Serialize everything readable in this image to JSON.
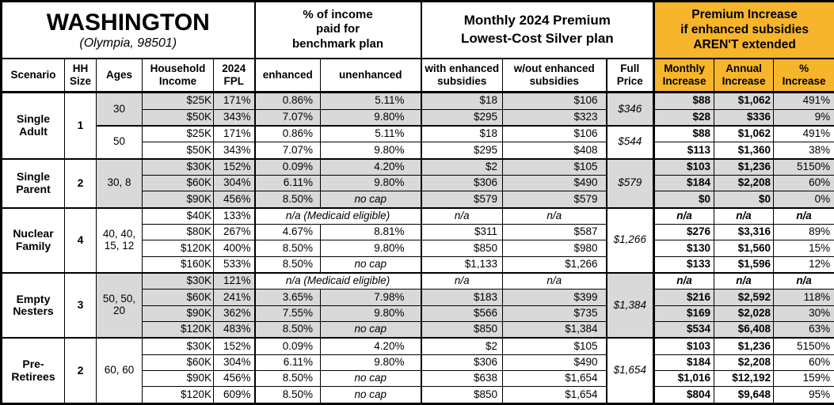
{
  "title": {
    "state": "WASHINGTON",
    "location": "(Olympia, 98501)"
  },
  "section_headers": {
    "benchmark": "% of income\npaid for\nbenchmark plan",
    "premium": "Monthly 2024 Premium\nLowest-Cost Silver plan",
    "increase": "Premium Increase\nif enhanced subsidies\nAREN'T extended"
  },
  "columns": {
    "scenario": "Scenario",
    "hh_size": "HH\nSize",
    "ages": "Ages",
    "household_income": "Household\nIncome",
    "fpl_2024": "2024\nFPL",
    "enhanced": "enhanced",
    "unenhanced": "unenhanced",
    "with_subsidies": "with enhanced\nsubsidies",
    "without_subsidies": "w/out enhanced\nsubsidies",
    "full_price": "Full\nPrice",
    "monthly_increase": "Monthly\nIncrease",
    "annual_increase": "Annual\nIncrease",
    "pct_increase": "%\nIncrease"
  },
  "colors": {
    "highlight_orange": "#F7B52B",
    "row_shade_gray": "#D9D9D9",
    "border_black": "#000000"
  },
  "medicaid_note": "n/a (Medicaid eligible)",
  "groups": [
    {
      "scenario": "Single\nAdult",
      "hh_size": "1",
      "subgroups": [
        {
          "ages": "30",
          "shaded": true,
          "full_price": "$346",
          "rows": [
            {
              "income": "$25K",
              "fpl": "171%",
              "enhanced": "0.86%",
              "unenhanced": "5.11%",
              "with_sub": "$18",
              "without_sub": "$106",
              "monthly": "$88",
              "annual": "$1,062",
              "pct": "491%"
            },
            {
              "income": "$50K",
              "fpl": "343%",
              "enhanced": "7.07%",
              "unenhanced": "9.80%",
              "with_sub": "$295",
              "without_sub": "$323",
              "monthly": "$28",
              "annual": "$336",
              "pct": "9%"
            }
          ]
        },
        {
          "ages": "50",
          "shaded": false,
          "full_price": "$544",
          "rows": [
            {
              "income": "$25K",
              "fpl": "171%",
              "enhanced": "0.86%",
              "unenhanced": "5.11%",
              "with_sub": "$18",
              "without_sub": "$106",
              "monthly": "$88",
              "annual": "$1,062",
              "pct": "491%"
            },
            {
              "income": "$50K",
              "fpl": "343%",
              "enhanced": "7.07%",
              "unenhanced": "9.80%",
              "with_sub": "$295",
              "without_sub": "$408",
              "monthly": "$113",
              "annual": "$1,360",
              "pct": "38%"
            }
          ]
        }
      ]
    },
    {
      "scenario": "Single\nParent",
      "hh_size": "2",
      "subgroups": [
        {
          "ages": "30, 8",
          "shaded": true,
          "full_price": "$579",
          "rows": [
            {
              "income": "$30K",
              "fpl": "152%",
              "enhanced": "0.09%",
              "unenhanced": "4.20%",
              "with_sub": "$2",
              "without_sub": "$105",
              "monthly": "$103",
              "annual": "$1,236",
              "pct": "5150%"
            },
            {
              "income": "$60K",
              "fpl": "304%",
              "enhanced": "6.11%",
              "unenhanced": "9.80%",
              "with_sub": "$306",
              "without_sub": "$490",
              "monthly": "$184",
              "annual": "$2,208",
              "pct": "60%"
            },
            {
              "income": "$90K",
              "fpl": "456%",
              "enhanced": "8.50%",
              "unenhanced": "no cap",
              "with_sub": "$579",
              "without_sub": "$579",
              "monthly": "$0",
              "annual": "$0",
              "pct": "0%"
            }
          ]
        }
      ]
    },
    {
      "scenario": "Nuclear\nFamily",
      "hh_size": "4",
      "subgroups": [
        {
          "ages": "40, 40,\n15, 12",
          "shaded": false,
          "full_price": "$1,266",
          "rows": [
            {
              "income": "$40K",
              "fpl": "133%",
              "medicaid": true,
              "with_sub": "n/a",
              "without_sub": "n/a",
              "monthly": "n/a",
              "annual": "n/a",
              "pct": "n/a"
            },
            {
              "income": "$80K",
              "fpl": "267%",
              "enhanced": "4.67%",
              "unenhanced": "8.81%",
              "with_sub": "$311",
              "without_sub": "$587",
              "monthly": "$276",
              "annual": "$3,316",
              "pct": "89%"
            },
            {
              "income": "$120K",
              "fpl": "400%",
              "enhanced": "8.50%",
              "unenhanced": "9.80%",
              "with_sub": "$850",
              "without_sub": "$980",
              "monthly": "$130",
              "annual": "$1,560",
              "pct": "15%"
            },
            {
              "income": "$160K",
              "fpl": "533%",
              "enhanced": "8.50%",
              "unenhanced": "no cap",
              "with_sub": "$1,133",
              "without_sub": "$1,266",
              "monthly": "$133",
              "annual": "$1,596",
              "pct": "12%"
            }
          ]
        }
      ]
    },
    {
      "scenario": "Empty\nNesters",
      "hh_size": "3",
      "subgroups": [
        {
          "ages": "50, 50,\n20",
          "shaded": true,
          "full_price": "$1,384",
          "rows": [
            {
              "income": "$30K",
              "fpl": "121%",
              "medicaid": true,
              "with_sub": "n/a",
              "without_sub": "n/a",
              "monthly": "n/a",
              "annual": "n/a",
              "pct": "n/a"
            },
            {
              "income": "$60K",
              "fpl": "241%",
              "enhanced": "3.65%",
              "unenhanced": "7.98%",
              "with_sub": "$183",
              "without_sub": "$399",
              "monthly": "$216",
              "annual": "$2,592",
              "pct": "118%"
            },
            {
              "income": "$90K",
              "fpl": "362%",
              "enhanced": "7.55%",
              "unenhanced": "9.80%",
              "with_sub": "$566",
              "without_sub": "$735",
              "monthly": "$169",
              "annual": "$2,028",
              "pct": "30%"
            },
            {
              "income": "$120K",
              "fpl": "483%",
              "enhanced": "8.50%",
              "unenhanced": "no cap",
              "with_sub": "$850",
              "without_sub": "$1,384",
              "monthly": "$534",
              "annual": "$6,408",
              "pct": "63%"
            }
          ]
        }
      ]
    },
    {
      "scenario": "Pre-\nRetirees",
      "hh_size": "2",
      "subgroups": [
        {
          "ages": "60, 60",
          "shaded": false,
          "full_price": "$1,654",
          "rows": [
            {
              "income": "$30K",
              "fpl": "152%",
              "enhanced": "0.09%",
              "unenhanced": "4.20%",
              "with_sub": "$2",
              "without_sub": "$105",
              "monthly": "$103",
              "annual": "$1,236",
              "pct": "5150%"
            },
            {
              "income": "$60K",
              "fpl": "304%",
              "enhanced": "6.11%",
              "unenhanced": "9.80%",
              "with_sub": "$306",
              "without_sub": "$490",
              "monthly": "$184",
              "annual": "$2,208",
              "pct": "60%"
            },
            {
              "income": "$90K",
              "fpl": "456%",
              "enhanced": "8.50%",
              "unenhanced": "no cap",
              "with_sub": "$638",
              "without_sub": "$1,654",
              "monthly": "$1,016",
              "annual": "$12,192",
              "pct": "159%"
            },
            {
              "income": "$120K",
              "fpl": "609%",
              "enhanced": "8.50%",
              "unenhanced": "no cap",
              "with_sub": "$850",
              "without_sub": "$1,654",
              "monthly": "$804",
              "annual": "$9,648",
              "pct": "95%"
            }
          ]
        }
      ]
    }
  ]
}
